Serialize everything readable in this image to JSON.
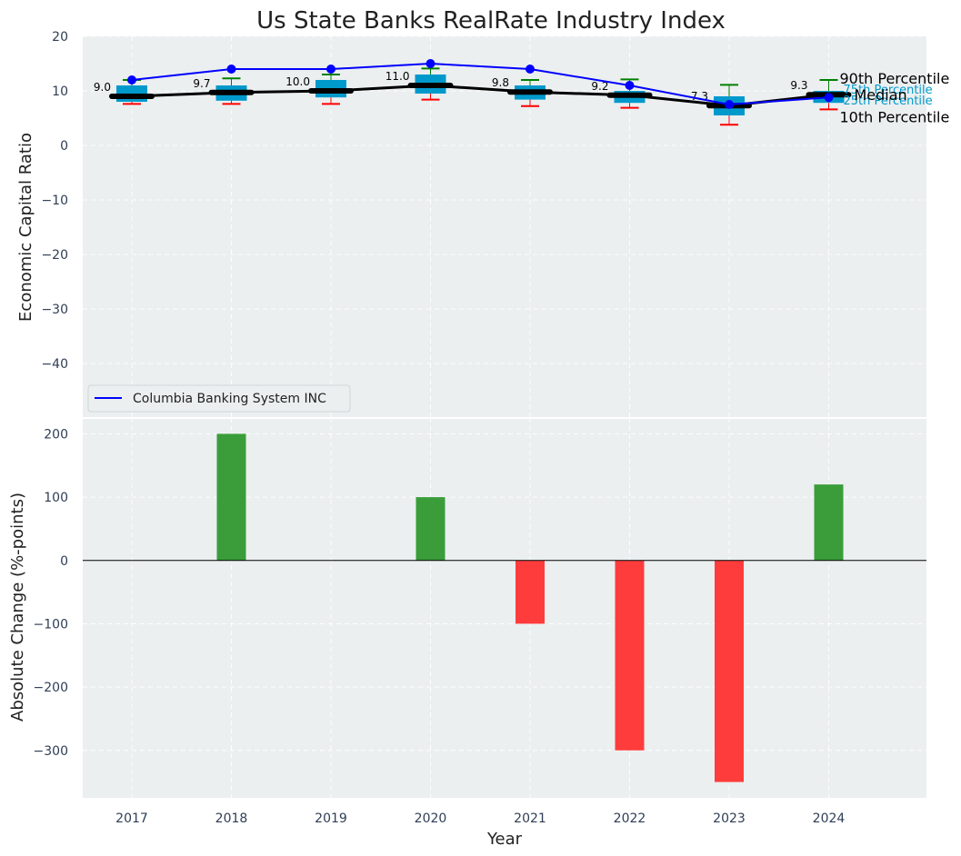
{
  "chart_data": [
    {
      "type": "box-line",
      "title": "Us State Banks RealRate Industry Index",
      "ylabel": "Economic Capital Ratio",
      "ylim": [
        -50,
        20
      ],
      "yticks": [
        20,
        10,
        0,
        -10,
        -20,
        -30,
        -40
      ],
      "ytick_labels": [
        "20",
        "10",
        "0",
        "−10",
        "−20",
        "−30",
        "−40"
      ],
      "years": [
        "2017",
        "2018",
        "2019",
        "2020",
        "2021",
        "2022",
        "2023",
        "2024"
      ],
      "p10": [
        7.6,
        7.6,
        7.6,
        8.4,
        7.2,
        6.9,
        3.8,
        6.6
      ],
      "q1": [
        8.0,
        8.2,
        8.8,
        9.5,
        8.4,
        7.8,
        5.5,
        7.8
      ],
      "median": [
        9.0,
        9.7,
        10.0,
        11.0,
        9.8,
        9.2,
        7.3,
        9.3
      ],
      "q3": [
        11.0,
        11.0,
        12.0,
        13.0,
        11.0,
        10.0,
        9.0,
        10.0
      ],
      "p90": [
        12.0,
        12.3,
        13.0,
        14.1,
        12.0,
        12.1,
        11.1,
        12.0
      ],
      "median_labels": [
        "9.0",
        "9.7",
        "10.0",
        "11.0",
        "9.8",
        "9.2",
        "7.3",
        "9.3"
      ],
      "company_series": {
        "name": "Columbia Banking System INC",
        "values": [
          12.0,
          14.0,
          14.0,
          15.0,
          14.0,
          11.0,
          7.5,
          8.8
        ],
        "color": "#0000ff"
      },
      "annotations": {
        "p90": "90th Percentile",
        "p75": "75th Percentile",
        "median": "Median",
        "p25": "25th Percentile",
        "p10": "10th Percentile"
      },
      "colors": {
        "box": "#0099cc",
        "median_line": "#000000",
        "whisker_high": "#008000",
        "whisker_low": "#ff0000",
        "background": "#ebeff0"
      },
      "legend": {
        "position": "lower-left",
        "entries": [
          "Columbia Banking System INC"
        ]
      }
    },
    {
      "type": "bar",
      "xlabel": "Year",
      "ylabel": "Absolute Change (%-points)",
      "ylim": [
        -375,
        225
      ],
      "yticks": [
        200,
        100,
        0,
        -100,
        -200,
        -300
      ],
      "ytick_labels": [
        "200",
        "100",
        "0",
        "−100",
        "−200",
        "−300"
      ],
      "categories": [
        "2017",
        "2018",
        "2019",
        "2020",
        "2021",
        "2022",
        "2023",
        "2024"
      ],
      "values": [
        0,
        200,
        0,
        100,
        -100,
        -300,
        -350,
        120
      ],
      "positive_color": "#3a9d3a",
      "negative_color": "#ff3c3c"
    }
  ]
}
